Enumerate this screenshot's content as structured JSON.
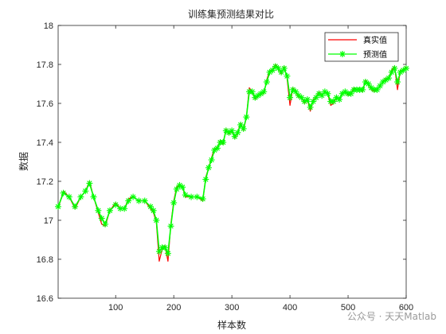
{
  "chart_data": {
    "type": "line",
    "title": "训练集预测结果对比",
    "xlabel": "样本数",
    "ylabel": "数据",
    "xlim": [
      1,
      600
    ],
    "ylim": [
      16.6,
      18
    ],
    "xticks": [
      100,
      200,
      300,
      400,
      500,
      600
    ],
    "yticks": [
      16.6,
      16.8,
      17,
      17.2,
      17.4,
      17.6,
      17.8,
      18
    ],
    "ytick_labels": [
      "16.6",
      "16.8",
      "17",
      "17.2",
      "17.4",
      "17.6",
      "17.8",
      "18"
    ],
    "grid": false,
    "legend_position": "top-right",
    "x": [
      1,
      10,
      20,
      30,
      40,
      48,
      55,
      62,
      70,
      76,
      82,
      90,
      100,
      108,
      115,
      122,
      130,
      140,
      150,
      160,
      165,
      170,
      175,
      180,
      185,
      190,
      195,
      200,
      205,
      210,
      215,
      220,
      230,
      240,
      250,
      255,
      260,
      265,
      270,
      275,
      280,
      285,
      290,
      295,
      300,
      305,
      310,
      315,
      320,
      325,
      330,
      335,
      340,
      345,
      350,
      355,
      360,
      365,
      370,
      375,
      380,
      385,
      390,
      395,
      400,
      405,
      410,
      415,
      420,
      425,
      430,
      435,
      440,
      445,
      450,
      455,
      460,
      465,
      470,
      475,
      480,
      485,
      490,
      495,
      500,
      505,
      510,
      515,
      520,
      525,
      530,
      535,
      540,
      545,
      550,
      555,
      560,
      565,
      570,
      575,
      580,
      585,
      590,
      595,
      600
    ],
    "series": [
      {
        "name": "真实值",
        "color": "#ff0000",
        "values": [
          17.06,
          17.15,
          17.12,
          17.06,
          17.12,
          17.15,
          17.2,
          17.12,
          17.04,
          16.98,
          16.97,
          17.05,
          17.09,
          17.06,
          17.06,
          17.11,
          17.12,
          17.1,
          17.1,
          17.06,
          17.04,
          16.99,
          16.79,
          16.85,
          16.87,
          16.79,
          16.98,
          17.1,
          17.17,
          17.18,
          17.17,
          17.12,
          17.12,
          17.12,
          17.1,
          17.22,
          17.27,
          17.32,
          17.37,
          17.37,
          17.41,
          17.39,
          17.47,
          17.44,
          17.46,
          17.42,
          17.45,
          17.5,
          17.46,
          17.53,
          17.68,
          17.66,
          17.62,
          17.64,
          17.65,
          17.65,
          17.72,
          17.77,
          17.77,
          17.8,
          17.78,
          17.75,
          17.79,
          17.73,
          17.59,
          17.68,
          17.66,
          17.63,
          17.63,
          17.6,
          17.62,
          17.56,
          17.62,
          17.63,
          17.66,
          17.64,
          17.66,
          17.65,
          17.59,
          17.6,
          17.63,
          17.62,
          17.65,
          17.66,
          17.64,
          17.65,
          17.68,
          17.67,
          17.67,
          17.66,
          17.72,
          17.7,
          17.67,
          17.66,
          17.67,
          17.69,
          17.71,
          17.73,
          17.73,
          17.77,
          17.79,
          17.67,
          17.77,
          17.77,
          17.79
        ]
      },
      {
        "name": "预测值",
        "color": "#00ff00",
        "values": [
          17.07,
          17.14,
          17.12,
          17.07,
          17.12,
          17.15,
          17.19,
          17.12,
          17.05,
          17.01,
          16.98,
          17.05,
          17.08,
          17.06,
          17.06,
          17.1,
          17.12,
          17.1,
          17.1,
          17.07,
          17.05,
          17.0,
          16.84,
          16.86,
          16.86,
          16.83,
          16.97,
          17.09,
          17.16,
          17.18,
          17.17,
          17.13,
          17.12,
          17.12,
          17.11,
          17.21,
          17.27,
          17.31,
          17.36,
          17.37,
          17.4,
          17.4,
          17.46,
          17.45,
          17.46,
          17.43,
          17.45,
          17.49,
          17.47,
          17.53,
          17.66,
          17.66,
          17.63,
          17.64,
          17.65,
          17.66,
          17.71,
          17.76,
          17.77,
          17.79,
          17.78,
          17.76,
          17.78,
          17.74,
          17.63,
          17.67,
          17.66,
          17.64,
          17.63,
          17.61,
          17.62,
          17.58,
          17.61,
          17.63,
          17.65,
          17.64,
          17.66,
          17.65,
          17.61,
          17.61,
          17.63,
          17.62,
          17.65,
          17.66,
          17.65,
          17.65,
          17.67,
          17.67,
          17.67,
          17.67,
          17.71,
          17.7,
          17.68,
          17.67,
          17.67,
          17.69,
          17.71,
          17.72,
          17.73,
          17.76,
          17.78,
          17.71,
          17.76,
          17.77,
          17.78
        ]
      }
    ]
  },
  "watermark": "公众号 · 天天Matlab"
}
